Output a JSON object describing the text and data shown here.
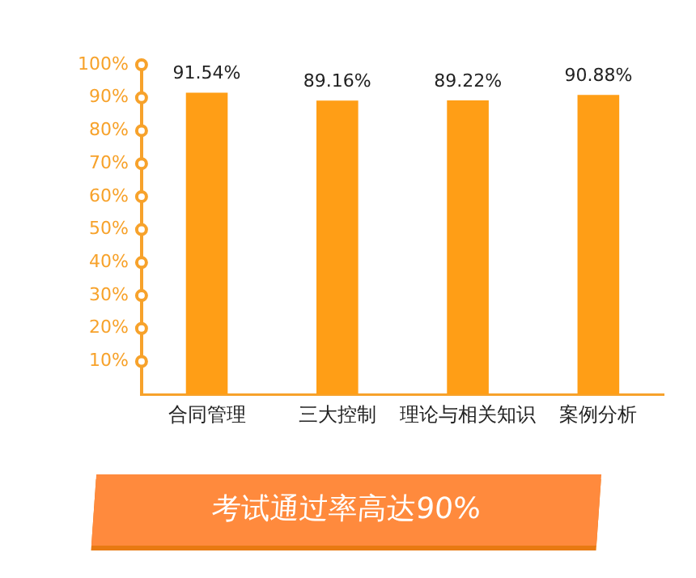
{
  "chart_data": {
    "type": "bar",
    "categories": [
      "合同管理",
      "三大控制",
      "理论与相关知识",
      "案例分析"
    ],
    "values": [
      91.54,
      89.16,
      89.22,
      90.88
    ],
    "value_labels": [
      "91.54%",
      "89.16%",
      "89.22%",
      "90.88%"
    ],
    "color": "#ff9e16",
    "ylim": [
      0,
      100
    ],
    "yticks": [
      {
        "value": 10,
        "label": "10%"
      },
      {
        "value": 20,
        "label": "20%"
      },
      {
        "value": 30,
        "label": "30%"
      },
      {
        "value": 40,
        "label": "40%"
      },
      {
        "value": 50,
        "label": "50%"
      },
      {
        "value": 60,
        "label": "60%"
      },
      {
        "value": 70,
        "label": "70%"
      },
      {
        "value": 80,
        "label": "80%"
      },
      {
        "value": 90,
        "label": "90%"
      },
      {
        "value": 100,
        "label": "100%"
      }
    ],
    "grid": false,
    "annotations": [
      "考试通过率高达90%"
    ]
  }
}
